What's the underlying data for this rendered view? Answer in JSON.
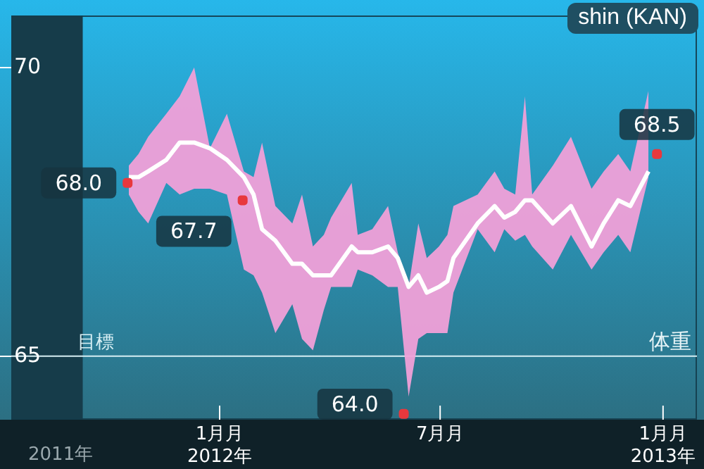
{
  "chart_data": {
    "type": "line",
    "title": "shin (KAN)",
    "xlim": [
      "2011-07-13",
      "2013-01-29"
    ],
    "ylim": [
      63.9,
      70.9
    ],
    "yticks": [
      65,
      70
    ],
    "xticks": [
      {
        "value": "2012-01-01",
        "label": "1月月\n2012年"
      },
      {
        "value": "2012-07-01",
        "label": "7月月"
      },
      {
        "value": "2013-01-01",
        "label": "1月月\n2013年"
      }
    ],
    "bands": [
      {
        "axis": "x",
        "from": "2011-07-13",
        "to": "2011-09-10",
        "color": "#163c4a"
      }
    ],
    "ref_lines": [
      {
        "axis": "y",
        "value": 65,
        "label": "目標",
        "color": "#d6eef3"
      }
    ],
    "annotations": [
      "2011年",
      "体重"
    ],
    "grid": false,
    "legend": false,
    "series": [
      {
        "type": "line",
        "color": "#ffffff",
        "marker": "none",
        "x": [
          "2011-10-18",
          "2011-10-26",
          "2011-11-03",
          "2011-11-18",
          "2011-11-29",
          "2011-12-11",
          "2011-12-24",
          "2012-01-07",
          "2012-01-21",
          "2012-01-29",
          "2012-02-05",
          "2012-02-16",
          "2012-03-01",
          "2012-03-09",
          "2012-03-18",
          "2012-03-27",
          "2012-04-02",
          "2012-04-19",
          "2012-04-24",
          "2012-05-06",
          "2012-05-19",
          "2012-05-27",
          "2012-06-05",
          "2012-06-13",
          "2012-06-20",
          "2012-06-30",
          "2012-07-07",
          "2012-07-12",
          "2012-08-01",
          "2012-08-15",
          "2012-08-23",
          "2012-09-01",
          "2012-09-09",
          "2012-09-15",
          "2012-10-02",
          "2012-10-17",
          "2012-11-03",
          "2012-11-13",
          "2012-11-25",
          "2012-12-05",
          "2012-12-20"
        ],
        "values": [
          68.1,
          68.1,
          68.2,
          68.4,
          68.7,
          68.7,
          68.6,
          68.4,
          68.1,
          67.8,
          67.2,
          67.0,
          66.6,
          66.6,
          66.4,
          66.4,
          66.4,
          66.9,
          66.8,
          66.8,
          66.9,
          66.7,
          66.2,
          66.4,
          66.1,
          66.2,
          66.3,
          66.7,
          67.3,
          67.6,
          67.4,
          67.5,
          67.7,
          67.7,
          67.3,
          67.6,
          66.9,
          67.3,
          67.7,
          67.6,
          68.2
        ],
        "upper": [
          68.3,
          68.5,
          68.8,
          69.2,
          69.5,
          70.0,
          68.6,
          69.2,
          68.2,
          68.1,
          68.7,
          67.6,
          67.3,
          67.8,
          66.9,
          67.1,
          67.4,
          68.0,
          67.1,
          67.2,
          67.6,
          66.8,
          66.2,
          67.3,
          66.7,
          66.9,
          67.1,
          67.6,
          67.8,
          68.2,
          67.9,
          67.8,
          69.5,
          67.8,
          68.3,
          68.8,
          67.9,
          68.2,
          68.5,
          68.2,
          69.6
        ],
        "lower": [
          67.8,
          67.5,
          67.3,
          68.0,
          67.8,
          67.9,
          67.9,
          67.8,
          66.5,
          66.4,
          66.1,
          65.4,
          65.9,
          65.3,
          65.1,
          65.8,
          66.2,
          66.2,
          66.5,
          66.4,
          66.2,
          66.2,
          64.3,
          65.3,
          65.4,
          65.4,
          65.4,
          66.1,
          67.2,
          66.8,
          67.2,
          67.0,
          67.1,
          66.9,
          66.5,
          67.1,
          66.5,
          66.8,
          67.1,
          66.8,
          68.1
        ]
      },
      {
        "type": "scatter",
        "color": "#e8383d",
        "marker": "square",
        "x": [
          "2011-10-17",
          "2012-01-20",
          "2012-06-01",
          "2012-12-27"
        ],
        "values": [
          68.0,
          67.7,
          64.0,
          68.5
        ],
        "value_labels": [
          "68.0",
          "67.7",
          "64.0",
          "68.5"
        ]
      }
    ]
  }
}
